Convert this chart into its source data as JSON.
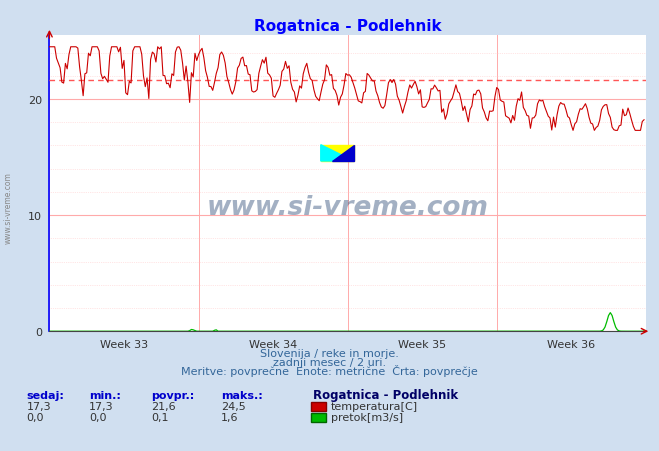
{
  "title": "Rogatnica - Podlehnik",
  "bg_color": "#d0dff0",
  "plot_bg_color": "#ffffff",
  "x_label_weeks": [
    "Week 33",
    "Week 34",
    "Week 35",
    "Week 36"
  ],
  "y_ticks": [
    0,
    10,
    20
  ],
  "ylim": [
    0,
    25.5
  ],
  "xlim": [
    0,
    336
  ],
  "temp_color": "#cc0000",
  "pretok_color": "#00bb00",
  "avg_line_color": "#ff6666",
  "avg_line_value": 21.6,
  "temp_min": 17.3,
  "temp_max": 24.5,
  "temp_avg": 21.6,
  "temp_current": 17.3,
  "pretok_min": 0.0,
  "pretok_max": 1.6,
  "pretok_avg": 0.1,
  "pretok_current": 0.0,
  "footer_line1": "Slovenija / reke in morje.",
  "footer_line2": "zadnji mesec / 2 uri.",
  "footer_line3": "Meritve: povprečne  Enote: metrične  Črta: povprečje",
  "label_sedaj": "sedaj:",
  "label_min": "min.:",
  "label_povpr": "povpr.:",
  "label_maks": "maks.:",
  "station_name": "Rogatnica - Podlehnik",
  "legend_temp": "temperatura[C]",
  "legend_pretok": "pretok[m3/s]",
  "watermark": "www.si-vreme.com",
  "sidebar_text": "www.si-vreme.com",
  "n_points": 336
}
